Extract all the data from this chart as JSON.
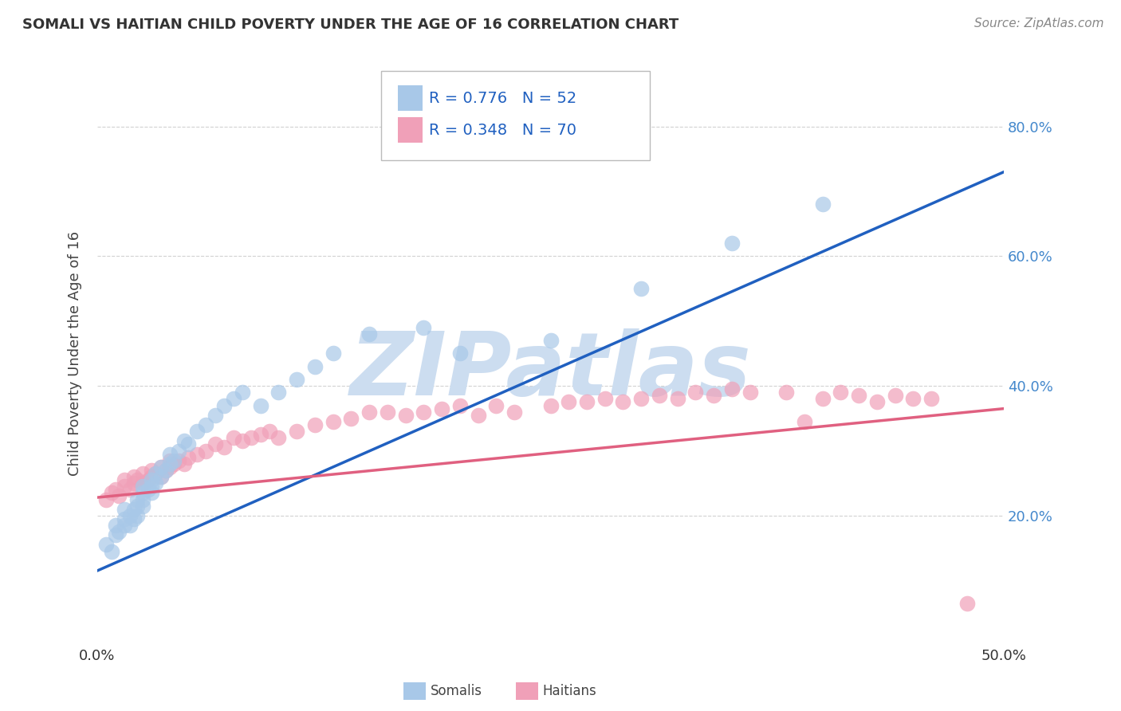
{
  "title": "SOMALI VS HAITIAN CHILD POVERTY UNDER THE AGE OF 16 CORRELATION CHART",
  "source_text": "Source: ZipAtlas.com",
  "ylabel": "Child Poverty Under the Age of 16",
  "xlim": [
    0.0,
    0.5
  ],
  "ylim": [
    0.0,
    0.9
  ],
  "xtick_positions": [
    0.0,
    0.5
  ],
  "xticklabels": [
    "0.0%",
    "50.0%"
  ],
  "ytick_positions": [
    0.2,
    0.4,
    0.6,
    0.8
  ],
  "yticklabels_right": [
    "20.0%",
    "40.0%",
    "60.0%",
    "80.0%"
  ],
  "somali_R": 0.776,
  "somali_N": 52,
  "haitian_R": 0.348,
  "haitian_N": 70,
  "somali_color": "#a8c8e8",
  "haitian_color": "#f0a0b8",
  "somali_line_color": "#2060c0",
  "haitian_line_color": "#e06080",
  "background_color": "#ffffff",
  "watermark_text": "ZIPatlas",
  "watermark_color": "#ccddf0",
  "legend_label_somali": "Somalis",
  "legend_label_haitian": "Haitians",
  "grid_color": "#cccccc",
  "tick_label_color": "#4488cc",
  "somali_x": [
    0.005,
    0.008,
    0.01,
    0.01,
    0.012,
    0.015,
    0.015,
    0.015,
    0.018,
    0.018,
    0.02,
    0.02,
    0.022,
    0.022,
    0.022,
    0.025,
    0.025,
    0.025,
    0.025,
    0.028,
    0.03,
    0.03,
    0.03,
    0.032,
    0.032,
    0.035,
    0.035,
    0.038,
    0.04,
    0.04,
    0.042,
    0.045,
    0.048,
    0.05,
    0.055,
    0.06,
    0.065,
    0.07,
    0.075,
    0.08,
    0.09,
    0.1,
    0.11,
    0.12,
    0.13,
    0.15,
    0.18,
    0.2,
    0.25,
    0.3,
    0.35,
    0.4
  ],
  "somali_y": [
    0.155,
    0.145,
    0.17,
    0.185,
    0.175,
    0.185,
    0.195,
    0.21,
    0.185,
    0.2,
    0.195,
    0.21,
    0.2,
    0.215,
    0.225,
    0.215,
    0.225,
    0.235,
    0.245,
    0.24,
    0.235,
    0.245,
    0.255,
    0.25,
    0.265,
    0.26,
    0.275,
    0.27,
    0.28,
    0.295,
    0.285,
    0.3,
    0.315,
    0.31,
    0.33,
    0.34,
    0.355,
    0.37,
    0.38,
    0.39,
    0.37,
    0.39,
    0.41,
    0.43,
    0.45,
    0.48,
    0.49,
    0.45,
    0.47,
    0.55,
    0.62,
    0.68
  ],
  "haitian_x": [
    0.005,
    0.008,
    0.01,
    0.012,
    0.015,
    0.015,
    0.018,
    0.02,
    0.02,
    0.022,
    0.025,
    0.025,
    0.028,
    0.03,
    0.03,
    0.032,
    0.035,
    0.035,
    0.038,
    0.04,
    0.04,
    0.042,
    0.045,
    0.048,
    0.05,
    0.055,
    0.06,
    0.065,
    0.07,
    0.075,
    0.08,
    0.085,
    0.09,
    0.095,
    0.1,
    0.11,
    0.12,
    0.13,
    0.14,
    0.15,
    0.16,
    0.17,
    0.18,
    0.19,
    0.2,
    0.21,
    0.22,
    0.23,
    0.25,
    0.26,
    0.27,
    0.28,
    0.29,
    0.3,
    0.31,
    0.32,
    0.33,
    0.34,
    0.35,
    0.36,
    0.38,
    0.39,
    0.4,
    0.41,
    0.42,
    0.43,
    0.44,
    0.45,
    0.46,
    0.48
  ],
  "haitian_y": [
    0.225,
    0.235,
    0.24,
    0.23,
    0.245,
    0.255,
    0.24,
    0.25,
    0.26,
    0.255,
    0.25,
    0.265,
    0.255,
    0.26,
    0.27,
    0.265,
    0.26,
    0.275,
    0.27,
    0.275,
    0.285,
    0.28,
    0.285,
    0.28,
    0.29,
    0.295,
    0.3,
    0.31,
    0.305,
    0.32,
    0.315,
    0.32,
    0.325,
    0.33,
    0.32,
    0.33,
    0.34,
    0.345,
    0.35,
    0.36,
    0.36,
    0.355,
    0.36,
    0.365,
    0.37,
    0.355,
    0.37,
    0.36,
    0.37,
    0.375,
    0.375,
    0.38,
    0.375,
    0.38,
    0.385,
    0.38,
    0.39,
    0.385,
    0.395,
    0.39,
    0.39,
    0.345,
    0.38,
    0.39,
    0.385,
    0.375,
    0.385,
    0.38,
    0.38,
    0.065
  ],
  "somali_line_x0": 0.0,
  "somali_line_y0": 0.115,
  "somali_line_x1": 0.5,
  "somali_line_y1": 0.73,
  "haitian_line_x0": 0.0,
  "haitian_line_y0": 0.228,
  "haitian_line_x1": 0.5,
  "haitian_line_y1": 0.365
}
